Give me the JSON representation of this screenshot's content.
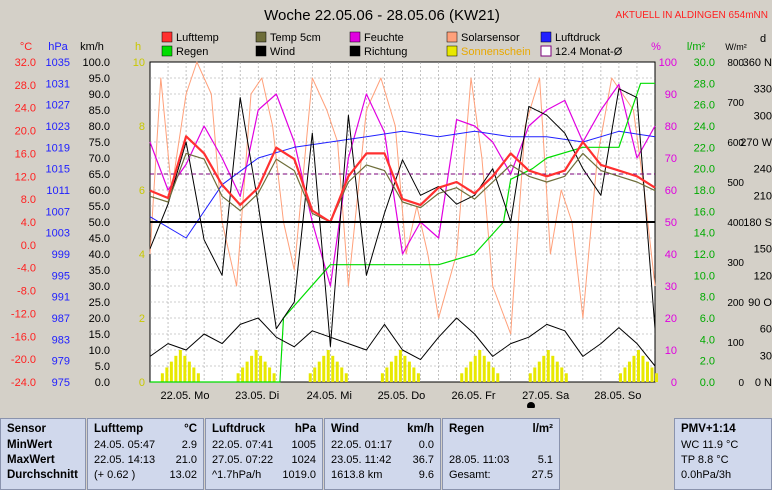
{
  "header": {
    "title": "Woche 22.05.06 - 28.05.06 (KW21)",
    "location": "AKTUELL IN ALDINGEN 654mNN"
  },
  "colors": {
    "lufttemp": "#ff3030",
    "temp5cm": "#6e6e3a",
    "feuchte": "#e000e0",
    "solarsensor": "#ffa07a",
    "luftdruck": "#2020ff",
    "regen": "#00dd00",
    "wind": "#000000",
    "richtung": "#000000",
    "sonnenschein": "#e8e800",
    "monat_avg": "#7b007b"
  },
  "legend": {
    "row1": [
      {
        "label": "Lufttemp",
        "color": "#ff3030",
        "key": "lufttemp"
      },
      {
        "label": "Temp 5cm",
        "color": "#6e6e3a",
        "key": "temp5cm"
      },
      {
        "label": "Feuchte",
        "color": "#e000e0",
        "key": "feuchte"
      },
      {
        "label": "Solarsensor",
        "color": "#ffa07a",
        "key": "solarsensor"
      },
      {
        "label": "Luftdruck",
        "color": "#2020ff",
        "key": "luftdruck"
      }
    ],
    "row2": [
      {
        "label": "Regen",
        "color": "#00dd00",
        "key": "regen"
      },
      {
        "label": "Wind",
        "color": "#000000",
        "key": "wind"
      },
      {
        "label": "Richtung",
        "color": "#000000",
        "key": "richtung"
      },
      {
        "label": "Sonnenschein",
        "color": "#e8e800",
        "key": "sonnenschein"
      },
      {
        "label": "12.4 Monat-Ø",
        "color": "#7b007b",
        "key": "monat_avg"
      }
    ]
  },
  "chart_data": {
    "type": "line",
    "xlim": [
      0,
      7
    ],
    "x_ticks": [
      "22.05. Mo",
      "23.05. Di",
      "24.05. Mi",
      "25.05. Do",
      "26.05. Fr",
      "27.05. Sa",
      "28.05. So"
    ],
    "axes": {
      "temp_c": {
        "unit": "°C",
        "ticks": [
          "32.0",
          "28.0",
          "24.0",
          "20.0",
          "16.0",
          "12.0",
          "8.0",
          "4.0",
          "0.0",
          "-4.0",
          "-8.0",
          "-12.0",
          "-16.0",
          "-20.0",
          "-24.0"
        ],
        "range": [
          -24,
          32
        ]
      },
      "pressure_hpa": {
        "unit": "hPa",
        "ticks": [
          "1035",
          "1031",
          "1027",
          "1023",
          "1019",
          "1015",
          "1011",
          "1007",
          "1003",
          "999",
          "995",
          "991",
          "987",
          "983",
          "979",
          "975"
        ],
        "range": [
          975,
          1035
        ]
      },
      "wind_kmh": {
        "unit": "km/h",
        "ticks": [
          "100.0",
          "95.0",
          "90.0",
          "85.0",
          "80.0",
          "75.0",
          "70.0",
          "65.0",
          "60.0",
          "55.0",
          "50.0",
          "45.0",
          "40.0",
          "35.0",
          "30.0",
          "25.0",
          "20.0",
          "15.0",
          "10.0",
          "5.0",
          "0.0"
        ],
        "range": [
          0,
          100
        ]
      },
      "sunshine_h": {
        "unit": "h",
        "ticks": [
          "10",
          "8",
          "6",
          "4",
          "2",
          "0"
        ],
        "range": [
          0,
          10
        ]
      },
      "humidity_pct": {
        "unit": "%",
        "ticks": [
          "100",
          "90",
          "80",
          "70",
          "60",
          "50",
          "40",
          "30",
          "20",
          "10",
          "0"
        ],
        "range": [
          0,
          100
        ]
      },
      "rain_lm2": {
        "unit": "l/m²",
        "ticks": [
          "30.0",
          "28.0",
          "26.0",
          "24.0",
          "22.0",
          "20.0",
          "18.0",
          "16.0",
          "14.0",
          "12.0",
          "10.0",
          "8.0",
          "6.0",
          "4.0",
          "2.0",
          "0.0"
        ],
        "range": [
          0,
          30
        ]
      },
      "wh_m2": {
        "unit": "W/m²",
        "ticks": [
          "800",
          "700",
          "600",
          "500",
          "400",
          "300",
          "200",
          "100",
          "0"
        ],
        "range": [
          0,
          800
        ]
      },
      "direction_deg": {
        "unit": "d",
        "ticks": [
          "360 N",
          "330",
          "300",
          "270 W",
          "240",
          "210",
          "180 S",
          "150",
          "120",
          "90 O",
          "60",
          "30",
          "0 N"
        ],
        "range": [
          0,
          360
        ]
      }
    },
    "series": [
      {
        "name": "Lufttemp",
        "axis": "temp_c",
        "x": [
          0,
          0.25,
          0.5,
          0.75,
          1,
          1.25,
          1.5,
          1.75,
          2,
          2.25,
          2.5,
          2.75,
          3,
          3.25,
          3.5,
          3.75,
          4,
          4.25,
          4.5,
          4.75,
          5,
          5.25,
          5.5,
          5.75,
          6,
          6.25,
          6.5,
          6.75,
          7
        ],
        "y": [
          9.5,
          8.2,
          19,
          16,
          10.5,
          7,
          10,
          17,
          15,
          6,
          4,
          12,
          16,
          16,
          8,
          7,
          10,
          11,
          9,
          12,
          16,
          13,
          12,
          13,
          18,
          14,
          13,
          12,
          10
        ]
      },
      {
        "name": "Temp 5cm",
        "axis": "temp_c",
        "x": [
          0,
          0.25,
          0.5,
          0.75,
          1,
          1.25,
          1.5,
          1.75,
          2,
          2.25,
          2.5,
          2.75,
          3,
          3.25,
          3.5,
          3.75,
          4,
          4.25,
          4.5,
          4.75,
          5,
          5.25,
          5.5,
          5.75,
          6,
          6.25,
          6.5,
          6.75,
          7
        ],
        "y": [
          8.5,
          7.5,
          16,
          15,
          8.5,
          6,
          9,
          15,
          13,
          5.5,
          4,
          11,
          14,
          13,
          7.5,
          6.5,
          9,
          10,
          8,
          11,
          14,
          12,
          11,
          12,
          16,
          13,
          12,
          11,
          9.5
        ]
      },
      {
        "name": "Feuchte",
        "axis": "humidity_pct",
        "x": [
          0,
          0.25,
          0.5,
          0.75,
          1,
          1.25,
          1.5,
          1.75,
          2,
          2.25,
          2.5,
          2.75,
          3,
          3.25,
          3.5,
          3.75,
          4,
          4.25,
          4.5,
          4.75,
          5,
          5.25,
          5.5,
          5.75,
          6,
          6.25,
          6.5,
          6.75,
          7
        ],
        "y": [
          75,
          60,
          68,
          80,
          70,
          58,
          85,
          90,
          75,
          50,
          30,
          70,
          90,
          78,
          40,
          50,
          45,
          82,
          80,
          75,
          65,
          80,
          85,
          88,
          75,
          85,
          93,
          70,
          80
        ]
      },
      {
        "name": "Solarsensor",
        "axis": "humidity_pct",
        "x": [
          0,
          0.15,
          0.3,
          0.5,
          0.65,
          0.85,
          1,
          1.2,
          1.4,
          1.55,
          1.7,
          1.85,
          2,
          2.25,
          2.45,
          2.6,
          2.75,
          3,
          3.2,
          3.4,
          3.55,
          3.7,
          3.85,
          4,
          4.25,
          4.45,
          4.6,
          4.75,
          5,
          5.2,
          5.4,
          5.55,
          5.7,
          5.85,
          6,
          6.2,
          6.4,
          6.55,
          6.7,
          6.85,
          7
        ],
        "y": [
          40,
          95,
          60,
          90,
          100,
          90,
          50,
          30,
          90,
          95,
          80,
          50,
          35,
          95,
          85,
          75,
          30,
          85,
          95,
          80,
          40,
          55,
          40,
          20,
          40,
          95,
          70,
          30,
          15,
          80,
          95,
          40,
          60,
          50,
          20,
          70,
          95,
          90,
          85,
          60,
          30
        ]
      },
      {
        "name": "Luftdruck",
        "axis": "pressure_hpa",
        "x": [
          0,
          0.5,
          1,
          1.5,
          2,
          2.5,
          3,
          3.5,
          4,
          4.5,
          5,
          5.5,
          6,
          6.5,
          7
        ],
        "y": [
          1006,
          1002,
          1012,
          1017,
          1019,
          1020,
          1021,
          1022,
          1021,
          1022,
          1021,
          1021,
          1020,
          1022,
          1021
        ]
      },
      {
        "name": "Regen",
        "axis": "rain_lm2",
        "x": [
          0,
          1.8,
          1.85,
          2.5,
          3.5,
          4,
          4.5,
          4.9,
          5,
          5.3,
          5.5,
          6,
          6.5,
          6.8,
          7
        ],
        "y": [
          0,
          0,
          6,
          11,
          11,
          11,
          12,
          15,
          19,
          20,
          21,
          22,
          22,
          28,
          28
        ]
      },
      {
        "name": "Wind",
        "axis": "wind_kmh",
        "x": [
          0,
          0.25,
          0.5,
          0.75,
          1,
          1.25,
          1.5,
          1.75,
          2,
          2.25,
          2.5,
          2.75,
          3,
          3.25,
          3.5,
          3.75,
          4,
          4.25,
          4.5,
          4.75,
          5,
          5.25,
          5.5,
          5.75,
          6,
          6.25,
          6.5,
          6.75,
          7
        ],
        "y": [
          8,
          12,
          10,
          15,
          12,
          18,
          20,
          14,
          11,
          16,
          14,
          12,
          10,
          18,
          10,
          7,
          14,
          20,
          15,
          8,
          12,
          14,
          18,
          16,
          8,
          12,
          17,
          12,
          5
        ]
      },
      {
        "name": "Richtung",
        "axis": "direction_deg",
        "x": [
          0,
          0.25,
          0.5,
          0.75,
          1,
          1.25,
          1.5,
          1.75,
          2,
          2.25,
          2.5,
          2.75,
          3,
          3.25,
          3.5,
          3.75,
          4,
          4.25,
          4.5,
          4.75,
          5,
          5.25,
          5.5,
          5.75,
          6,
          6.25,
          6.5,
          6.75,
          7
        ],
        "y": [
          150,
          200,
          270,
          160,
          120,
          320,
          200,
          60,
          90,
          280,
          40,
          300,
          120,
          190,
          250,
          210,
          220,
          200,
          210,
          240,
          180,
          310,
          300,
          280,
          240,
          210,
          330,
          320,
          60
        ]
      },
      {
        "name": "Sonnenschein",
        "axis": "sunshine_h",
        "x": [
          0.4,
          1.45,
          2.45,
          3.45,
          4.55,
          5.5,
          6.75
        ],
        "y": [
          1,
          1,
          1,
          1,
          1,
          1,
          1
        ]
      },
      {
        "name": "12.4 Monat-Ø",
        "axis": "temp_c",
        "x": [
          0,
          7
        ],
        "y": [
          12.4,
          12.4
        ]
      }
    ],
    "reference_lines": [
      {
        "axis": "temp_c",
        "value": 4,
        "color": "#000000"
      }
    ],
    "grid": true
  },
  "stats": {
    "sensor": {
      "title": "Sensor",
      "rows": [
        "MinWert",
        "MaxWert",
        "Durchschnitt"
      ]
    },
    "lufttemp": {
      "title": "Lufttemp",
      "unit": "°C",
      "rows": [
        {
          "time": "24.05.  05:47",
          "val": "2.9"
        },
        {
          "time": "22.05.  14:13",
          "val": "21.0"
        },
        {
          "time": "(+ 0.62 )",
          "val": "13.02"
        }
      ]
    },
    "luftdruck": {
      "title": "Luftdruck",
      "unit": "hPa",
      "rows": [
        {
          "time": "22.05.  07:41",
          "val": "1005"
        },
        {
          "time": "27.05.  07:22",
          "val": "1024"
        },
        {
          "time": "^1.7hPa/h",
          "val": "1019.0"
        }
      ]
    },
    "wind": {
      "title": "Wind",
      "unit": "km/h",
      "rows": [
        {
          "time": "22.05.  01:17",
          "val": "0.0"
        },
        {
          "time": "23.05.  11:42",
          "val": "36.7"
        },
        {
          "time": "1613.8 km",
          "val": "9.6"
        }
      ]
    },
    "regen": {
      "title": "Regen",
      "unit": "l/m²",
      "rows": [
        {
          "time": "",
          "val": ""
        },
        {
          "time": "28.05.  11:03",
          "val": "5.1"
        },
        {
          "time": "Gesamt:",
          "val": "27.5"
        }
      ]
    },
    "pmv": {
      "title": "PMV+1:14",
      "rows": [
        "WC 11.9 °C",
        "TP 8.8 °C",
        "0.0hPa/3h"
      ]
    }
  }
}
